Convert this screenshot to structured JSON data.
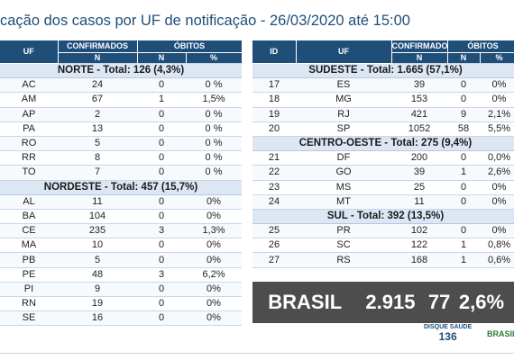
{
  "title": "cação dos casos por UF de notificação - 26/03/2020 até 15:00",
  "left_table": {
    "headers": {
      "uf": "UF",
      "confirmados": "CONFIRMADOS",
      "obitos": "ÓBITOS",
      "n": "N",
      "n2": "N",
      "pct": "%"
    },
    "regions": [
      {
        "label": "NORTE - Total: 126 (4,3%)",
        "rows": [
          [
            "AC",
            "24",
            "0",
            "0 %"
          ],
          [
            "AM",
            "67",
            "1",
            "1,5%"
          ],
          [
            "AP",
            "2",
            "0",
            "0 %"
          ],
          [
            "PA",
            "13",
            "0",
            "0 %"
          ],
          [
            "RO",
            "5",
            "0",
            "0 %"
          ],
          [
            "RR",
            "8",
            "0",
            "0 %"
          ],
          [
            "TO",
            "7",
            "0",
            "0 %"
          ]
        ]
      },
      {
        "label": "NORDESTE - Total: 457 (15,7%)",
        "rows": [
          [
            "AL",
            "11",
            "0",
            "0%"
          ],
          [
            "BA",
            "104",
            "0",
            "0%"
          ],
          [
            "CE",
            "235",
            "3",
            "1,3%"
          ],
          [
            "MA",
            "10",
            "0",
            "0%"
          ],
          [
            "PB",
            "5",
            "0",
            "0%"
          ],
          [
            "PE",
            "48",
            "3",
            "6,2%"
          ],
          [
            "PI",
            "9",
            "0",
            "0%"
          ],
          [
            "RN",
            "19",
            "0",
            "0%"
          ],
          [
            "SE",
            "16",
            "0",
            "0%"
          ]
        ]
      }
    ]
  },
  "right_table": {
    "headers": {
      "id": "ID",
      "uf": "UF",
      "confirmados": "CONFIRMADOS",
      "obitos": "ÓBITOS",
      "n": "N",
      "n2": "N",
      "pct": "%"
    },
    "regions": [
      {
        "label": "SUDESTE - Total: 1.665 (57,1%)",
        "rows": [
          [
            "17",
            "ES",
            "39",
            "0",
            "0%"
          ],
          [
            "18",
            "MG",
            "153",
            "0",
            "0%"
          ],
          [
            "19",
            "RJ",
            "421",
            "9",
            "2,1%"
          ],
          [
            "20",
            "SP",
            "1052",
            "58",
            "5,5%"
          ]
        ]
      },
      {
        "label": "CENTRO-OESTE - Total: 275 (9,4%)",
        "rows": [
          [
            "21",
            "DF",
            "200",
            "0",
            "0,0%"
          ],
          [
            "22",
            "GO",
            "39",
            "1",
            "2,6%"
          ],
          [
            "23",
            "MS",
            "25",
            "0",
            "0%"
          ],
          [
            "24",
            "MT",
            "11",
            "0",
            "0%"
          ]
        ]
      },
      {
        "label": "SUL - Total: 392 (13,5%)",
        "rows": [
          [
            "25",
            "PR",
            "102",
            "0",
            "0%"
          ],
          [
            "26",
            "SC",
            "122",
            "1",
            "0,8%"
          ],
          [
            "27",
            "RS",
            "168",
            "1",
            "0,6%"
          ]
        ]
      }
    ]
  },
  "brasil": {
    "label": "BRASIL",
    "confirmados": "2.915",
    "obitos": "77",
    "pct": "2,6%"
  },
  "footer": {
    "disque_saude_label": "DISQUE SAÚDE",
    "disque_saude_number": "136",
    "brasil_logo": "BRASIL"
  }
}
